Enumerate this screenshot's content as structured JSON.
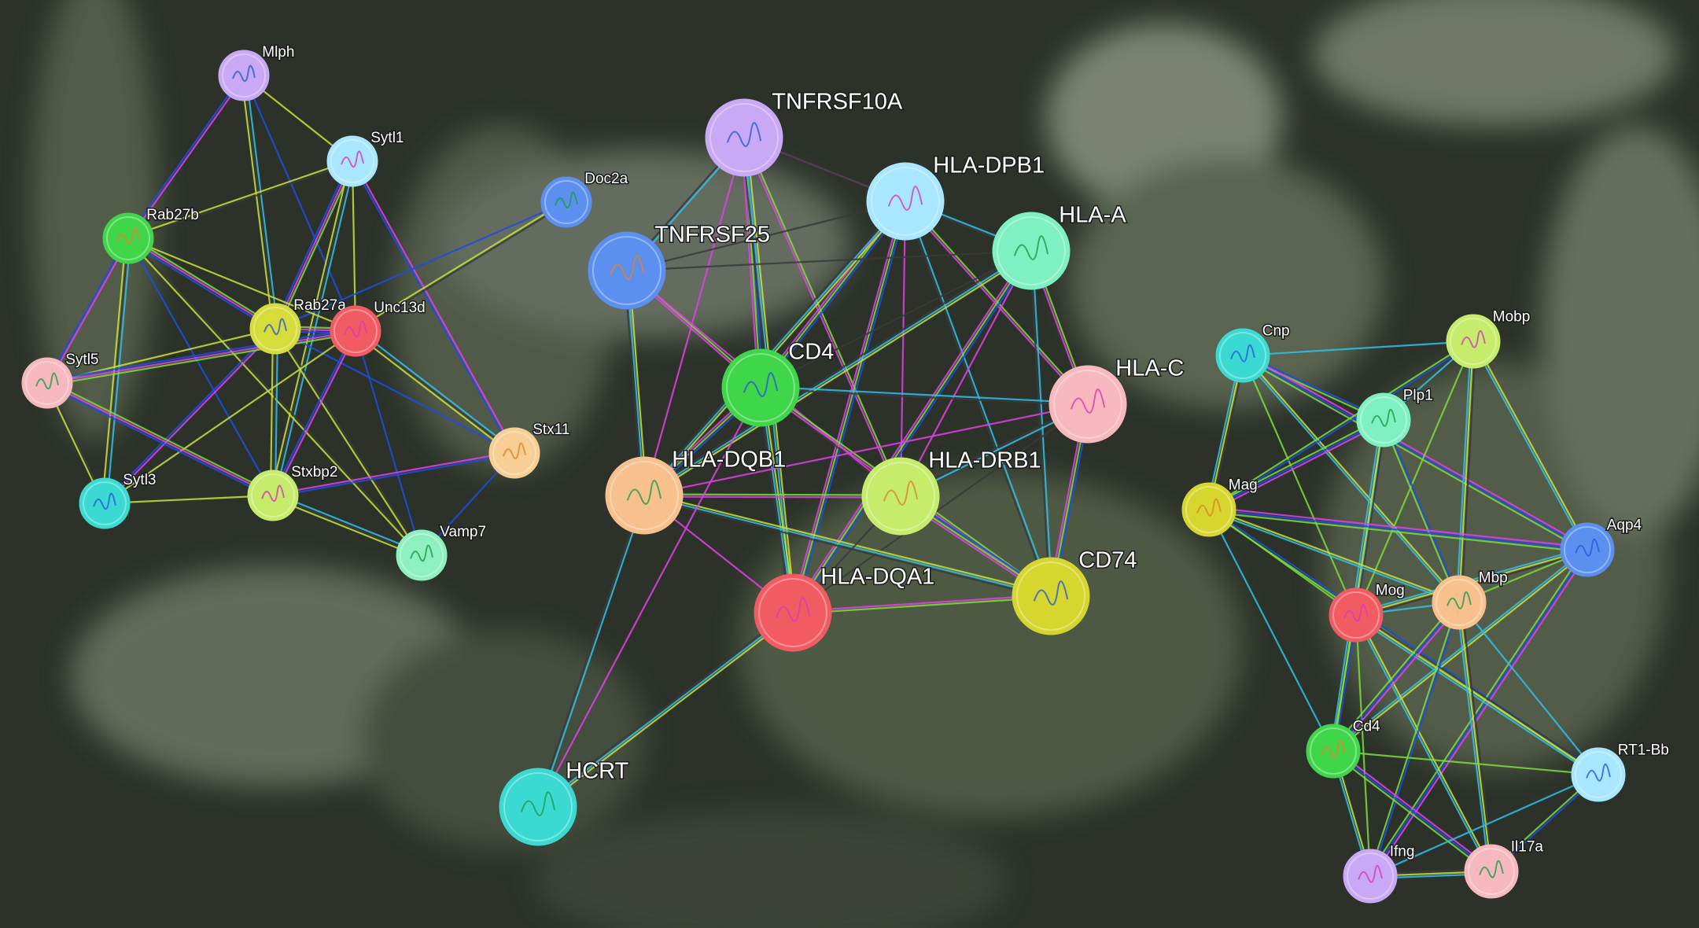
{
  "networks": [
    {
      "name": "left-cluster",
      "nodes": [
        {
          "id": "Mlph",
          "label": "Mlph",
          "color": "#c9a8f5"
        },
        {
          "id": "Sytl1",
          "label": "Sytl1",
          "color": "#a9e6ff"
        },
        {
          "id": "Doc2a",
          "label": "Doc2a",
          "color": "#5b8ff0"
        },
        {
          "id": "Rab27b",
          "label": "Rab27b",
          "color": "#3fd64a"
        },
        {
          "id": "Rab27a",
          "label": "Rab27a",
          "color": "#d6dc3a"
        },
        {
          "id": "Unc13d",
          "label": "Unc13d",
          "color": "#f25b62"
        },
        {
          "id": "Sytl5",
          "label": "Sytl5",
          "color": "#f7b9bd"
        },
        {
          "id": "Stx11",
          "label": "Stx11",
          "color": "#f7cf94"
        },
        {
          "id": "Sytl3",
          "label": "Sytl3",
          "color": "#3ad9d2"
        },
        {
          "id": "Stxbp2",
          "label": "Stxbp2",
          "color": "#c6ec6b"
        },
        {
          "id": "Vamp7",
          "label": "Vamp7",
          "color": "#8ff0bf"
        }
      ],
      "edges": [
        [
          "Mlph",
          "Sytl1"
        ],
        [
          "Mlph",
          "Rab27b"
        ],
        [
          "Mlph",
          "Rab27a"
        ],
        [
          "Mlph",
          "Unc13d"
        ],
        [
          "Sytl1",
          "Rab27b"
        ],
        [
          "Sytl1",
          "Rab27a"
        ],
        [
          "Sytl1",
          "Unc13d"
        ],
        [
          "Sytl1",
          "Stx11"
        ],
        [
          "Sytl1",
          "Stxbp2"
        ],
        [
          "Doc2a",
          "Rab27a"
        ],
        [
          "Doc2a",
          "Unc13d"
        ],
        [
          "Rab27b",
          "Rab27a"
        ],
        [
          "Rab27b",
          "Unc13d"
        ],
        [
          "Rab27b",
          "Sytl5"
        ],
        [
          "Rab27b",
          "Sytl3"
        ],
        [
          "Rab27b",
          "Stxbp2"
        ],
        [
          "Rab27b",
          "Vamp7"
        ],
        [
          "Rab27a",
          "Unc13d"
        ],
        [
          "Rab27a",
          "Sytl5"
        ],
        [
          "Rab27a",
          "Sytl3"
        ],
        [
          "Rab27a",
          "Stxbp2"
        ],
        [
          "Rab27a",
          "Stx11"
        ],
        [
          "Rab27a",
          "Vamp7"
        ],
        [
          "Unc13d",
          "Sytl5"
        ],
        [
          "Unc13d",
          "Sytl3"
        ],
        [
          "Unc13d",
          "Stxbp2"
        ],
        [
          "Unc13d",
          "Stx11"
        ],
        [
          "Unc13d",
          "Vamp7"
        ],
        [
          "Sytl5",
          "Sytl3"
        ],
        [
          "Sytl5",
          "Stxbp2"
        ],
        [
          "Sytl3",
          "Stxbp2"
        ],
        [
          "Stxbp2",
          "Stx11"
        ],
        [
          "Stxbp2",
          "Vamp7"
        ],
        [
          "Stx11",
          "Vamp7"
        ]
      ]
    },
    {
      "name": "center-cluster",
      "nodes": [
        {
          "id": "TNFRSF10A",
          "label": "TNFRSF10A",
          "color": "#c9a8f5"
        },
        {
          "id": "HLA-DPB1",
          "label": "HLA-DPB1",
          "color": "#a9e6ff"
        },
        {
          "id": "HLA-A",
          "label": "HLA-A",
          "color": "#7ff0c2"
        },
        {
          "id": "TNFRSF25",
          "label": "TNFRSF25",
          "color": "#5b8ff0"
        },
        {
          "id": "CD4",
          "label": "CD4",
          "color": "#3fd64a"
        },
        {
          "id": "HLA-C",
          "label": "HLA-C",
          "color": "#f7b9bd"
        },
        {
          "id": "HLA-DQB1",
          "label": "HLA-DQB1",
          "color": "#f7c08c"
        },
        {
          "id": "HLA-DRB1",
          "label": "HLA-DRB1",
          "color": "#c6ec6b"
        },
        {
          "id": "CD74",
          "label": "CD74",
          "color": "#d6d62e"
        },
        {
          "id": "HLA-DQA1",
          "label": "HLA-DQA1",
          "color": "#f25b62"
        },
        {
          "id": "HCRT",
          "label": "HCRT",
          "color": "#3ad9d2"
        }
      ],
      "edges": [
        [
          "TNFRSF10A",
          "HLA-DPB1"
        ],
        [
          "TNFRSF10A",
          "TNFRSF25"
        ],
        [
          "TNFRSF10A",
          "CD4"
        ],
        [
          "TNFRSF10A",
          "HLA-A"
        ],
        [
          "TNFRSF10A",
          "HLA-DRB1"
        ],
        [
          "TNFRSF10A",
          "HLA-DQA1"
        ],
        [
          "TNFRSF10A",
          "HLA-DQB1"
        ],
        [
          "HLA-DPB1",
          "HLA-A"
        ],
        [
          "HLA-DPB1",
          "CD4"
        ],
        [
          "HLA-DPB1",
          "TNFRSF25"
        ],
        [
          "HLA-DPB1",
          "HLA-C"
        ],
        [
          "HLA-DPB1",
          "HLA-DQB1"
        ],
        [
          "HLA-DPB1",
          "HLA-DRB1"
        ],
        [
          "HLA-DPB1",
          "CD74"
        ],
        [
          "HLA-DPB1",
          "HLA-DQA1"
        ],
        [
          "HLA-A",
          "CD4"
        ],
        [
          "HLA-A",
          "HLA-C"
        ],
        [
          "HLA-A",
          "HLA-DQB1"
        ],
        [
          "HLA-A",
          "HLA-DRB1"
        ],
        [
          "HLA-A",
          "CD74"
        ],
        [
          "HLA-A",
          "HLA-DQA1"
        ],
        [
          "HLA-A",
          "TNFRSF25"
        ],
        [
          "TNFRSF25",
          "CD4"
        ],
        [
          "TNFRSF25",
          "HLA-DQB1"
        ],
        [
          "TNFRSF25",
          "HLA-DRB1"
        ],
        [
          "CD4",
          "HLA-C"
        ],
        [
          "CD4",
          "HLA-DQB1"
        ],
        [
          "CD4",
          "HLA-DRB1"
        ],
        [
          "CD4",
          "CD74"
        ],
        [
          "CD4",
          "HLA-DQA1"
        ],
        [
          "HLA-C",
          "HLA-DQB1"
        ],
        [
          "HLA-C",
          "HLA-DRB1"
        ],
        [
          "HLA-C",
          "CD74"
        ],
        [
          "HLA-C",
          "HLA-DQA1"
        ],
        [
          "HLA-DQB1",
          "HLA-DRB1"
        ],
        [
          "HLA-DQB1",
          "CD74"
        ],
        [
          "HLA-DQB1",
          "HLA-DQA1"
        ],
        [
          "HLA-DQB1",
          "HCRT"
        ],
        [
          "HLA-DRB1",
          "CD74"
        ],
        [
          "HLA-DRB1",
          "HLA-DQA1"
        ],
        [
          "CD74",
          "HLA-DQA1"
        ],
        [
          "HLA-DQA1",
          "HCRT"
        ],
        [
          "CD4",
          "HCRT"
        ]
      ]
    },
    {
      "name": "right-cluster",
      "nodes": [
        {
          "id": "Cnp",
          "label": "Cnp",
          "color": "#3ad9d2"
        },
        {
          "id": "Mobp",
          "label": "Mobp",
          "color": "#c6ec6b"
        },
        {
          "id": "Plp1",
          "label": "Plp1",
          "color": "#7ff0c2"
        },
        {
          "id": "Mag",
          "label": "Mag",
          "color": "#d6d62e"
        },
        {
          "id": "Aqp4",
          "label": "Aqp4",
          "color": "#5b8ff0"
        },
        {
          "id": "Mog",
          "label": "Mog",
          "color": "#f25b62"
        },
        {
          "id": "Mbp",
          "label": "Mbp",
          "color": "#f7c08c"
        },
        {
          "id": "Cd4",
          "label": "Cd4",
          "color": "#3fd64a"
        },
        {
          "id": "RT1-Bb",
          "label": "RT1-Bb",
          "color": "#a9e6ff"
        },
        {
          "id": "Ifng",
          "label": "Ifng",
          "color": "#c9a8f5"
        },
        {
          "id": "Il17a",
          "label": "Il17a",
          "color": "#f7b9bd"
        }
      ],
      "edges": [
        [
          "Cnp",
          "Mobp"
        ],
        [
          "Cnp",
          "Plp1"
        ],
        [
          "Cnp",
          "Mag"
        ],
        [
          "Cnp",
          "Mog"
        ],
        [
          "Cnp",
          "Mbp"
        ],
        [
          "Cnp",
          "Aqp4"
        ],
        [
          "Mobp",
          "Plp1"
        ],
        [
          "Mobp",
          "Mag"
        ],
        [
          "Mobp",
          "Mbp"
        ],
        [
          "Mobp",
          "Mog"
        ],
        [
          "Mobp",
          "Aqp4"
        ],
        [
          "Plp1",
          "Mag"
        ],
        [
          "Plp1",
          "Mog"
        ],
        [
          "Plp1",
          "Mbp"
        ],
        [
          "Plp1",
          "Cd4"
        ],
        [
          "Mag",
          "Mog"
        ],
        [
          "Mag",
          "Mbp"
        ],
        [
          "Mag",
          "Aqp4"
        ],
        [
          "Mag",
          "Cd4"
        ],
        [
          "Mag",
          "RT1-Bb"
        ],
        [
          "Aqp4",
          "Mog"
        ],
        [
          "Aqp4",
          "Mbp"
        ],
        [
          "Aqp4",
          "Cd4"
        ],
        [
          "Aqp4",
          "Ifng"
        ],
        [
          "Mog",
          "Mbp"
        ],
        [
          "Mog",
          "Cd4"
        ],
        [
          "Mog",
          "RT1-Bb"
        ],
        [
          "Mog",
          "Ifng"
        ],
        [
          "Mog",
          "Il17a"
        ],
        [
          "Mbp",
          "Cd4"
        ],
        [
          "Mbp",
          "RT1-Bb"
        ],
        [
          "Mbp",
          "Ifng"
        ],
        [
          "Mbp",
          "Il17a"
        ],
        [
          "Cd4",
          "RT1-Bb"
        ],
        [
          "Cd4",
          "Ifng"
        ],
        [
          "Cd4",
          "Il17a"
        ],
        [
          "RT1-Bb",
          "Ifng"
        ],
        [
          "RT1-Bb",
          "Il17a"
        ],
        [
          "Ifng",
          "Il17a"
        ]
      ]
    }
  ],
  "edge_colors": [
    "#c8e03a",
    "#e23fe6",
    "#2fbfe8",
    "#1b4fe0",
    "#3a3a3a",
    "#7bdc3a"
  ]
}
